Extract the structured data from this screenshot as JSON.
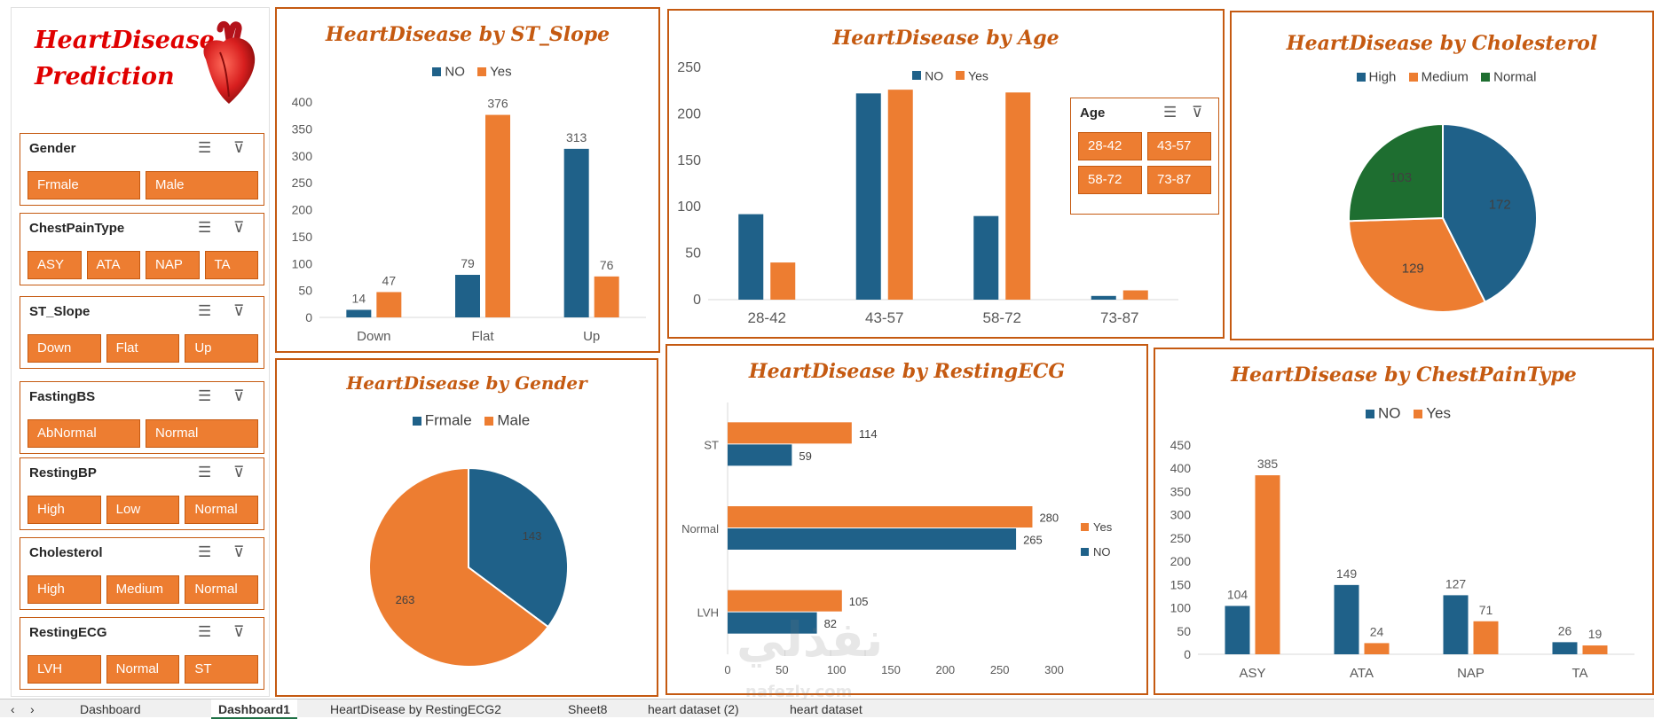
{
  "brand": {
    "line1": "HeartDisease",
    "line2": "Prediction",
    "icon": "heart-organ-icon"
  },
  "colors": {
    "no": "#1f6189",
    "yes": "#ed7d31",
    "normal": "#1e6e30",
    "accent": "#c55a11"
  },
  "slicers": [
    {
      "title": "Gender",
      "items": [
        "Frmale",
        "Male"
      ]
    },
    {
      "title": "ChestPainType",
      "items": [
        "ASY",
        "ATA",
        "NAP",
        "TA"
      ]
    },
    {
      "title": "ST_Slope",
      "items": [
        "Down",
        "Flat",
        "Up"
      ]
    },
    {
      "title": "FastingBS",
      "items": [
        "AbNormal",
        "Normal"
      ]
    },
    {
      "title": "RestingBP",
      "items": [
        "High",
        "Low",
        "Normal"
      ]
    },
    {
      "title": "Cholesterol",
      "items": [
        "High",
        "Medium",
        "Normal"
      ]
    },
    {
      "title": "RestingECG",
      "items": [
        "LVH",
        "Normal",
        "ST"
      ]
    }
  ],
  "age_slicer": {
    "title": "Age",
    "items": [
      "28-42",
      "43-57",
      "58-72",
      "73-87"
    ]
  },
  "chart_data": [
    {
      "id": "st_slope",
      "type": "bar",
      "title": "HeartDisease by ST_Slope",
      "categories": [
        "Down",
        "Flat",
        "Up"
      ],
      "series": [
        {
          "name": "NO",
          "values": [
            14,
            79,
            313
          ]
        },
        {
          "name": "Yes",
          "values": [
            47,
            376,
            76
          ]
        }
      ],
      "ylim": [
        0,
        400
      ],
      "yticks": [
        "0",
        "50",
        "100",
        "150",
        "200",
        "250",
        "300",
        "350",
        "400"
      ],
      "legend": "top",
      "grid": false
    },
    {
      "id": "age",
      "type": "bar",
      "title": "HeartDisease by Age",
      "categories": [
        "28-42",
        "43-57",
        "58-72",
        "73-87"
      ],
      "series": [
        {
          "name": "NO",
          "values": [
            92,
            222,
            90,
            4
          ]
        },
        {
          "name": "Yes",
          "values": [
            40,
            226,
            223,
            10
          ]
        }
      ],
      "ylim": [
        0,
        250
      ],
      "yticks": [
        "0",
        "50",
        "100",
        "150",
        "200",
        "250"
      ],
      "legend": "top",
      "grid": false
    },
    {
      "id": "cholesterol",
      "type": "pie",
      "title": "HeartDisease by Cholesterol",
      "labels": [
        "High",
        "Medium",
        "Normal"
      ],
      "values": [
        172,
        129,
        103
      ],
      "value_labels": [
        "172",
        "129",
        "103"
      ],
      "legend": "top"
    },
    {
      "id": "gender",
      "type": "pie",
      "title": "HeartDisease by Gender",
      "labels": [
        "Frmale",
        "Male"
      ],
      "values": [
        143,
        263
      ],
      "value_labels": [
        "143",
        "263"
      ],
      "legend": "top"
    },
    {
      "id": "resting_ecg",
      "type": "bar",
      "orientation": "horizontal",
      "title": "HeartDisease by RestingECG",
      "categories": [
        "LVH",
        "Normal",
        "ST"
      ],
      "series": [
        {
          "name": "NO",
          "values": [
            82,
            265,
            59
          ]
        },
        {
          "name": "Yes",
          "values": [
            105,
            280,
            114
          ]
        }
      ],
      "xlim": [
        0,
        300
      ],
      "xticks": [
        "0",
        "50",
        "100",
        "150",
        "200",
        "250",
        "300"
      ],
      "legend": "right",
      "grid": false
    },
    {
      "id": "chest_pain",
      "type": "bar",
      "title": "HeartDisease by ChestPainType",
      "categories": [
        "ASY",
        "ATA",
        "NAP",
        "TA"
      ],
      "series": [
        {
          "name": "NO",
          "values": [
            104,
            149,
            127,
            26
          ]
        },
        {
          "name": "Yes",
          "values": [
            385,
            24,
            71,
            19
          ]
        }
      ],
      "ylim": [
        0,
        450
      ],
      "yticks": [
        "0",
        "50",
        "100",
        "150",
        "200",
        "250",
        "300",
        "350",
        "400",
        "450"
      ],
      "legend": "top",
      "grid": false
    }
  ],
  "sheet_tabs": [
    "Dashboard",
    "Dashboard1",
    "HeartDisease by RestingECG2",
    "Sheet8",
    "heart dataset (2)",
    "heart dataset"
  ],
  "watermark": {
    "arabic": "نفذلي",
    "latin": "nafezly.com"
  }
}
